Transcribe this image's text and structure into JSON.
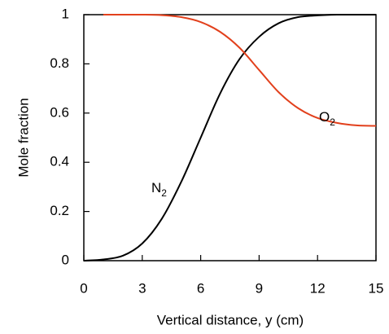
{
  "chart_data": {
    "type": "line",
    "xlabel": "Vertical distance, y (cm)",
    "ylabel": "Mole fraction",
    "x": [
      0,
      1,
      2,
      3,
      4,
      5,
      6,
      7,
      8,
      9,
      10,
      11,
      12,
      13,
      14,
      15
    ],
    "series": [
      {
        "label": {
          "text": "N",
          "subscript": "2"
        },
        "color": "#000000",
        "values": [
          0,
          0.005,
          0.02,
          0.07,
          0.17,
          0.32,
          0.5,
          0.68,
          0.82,
          0.91,
          0.965,
          0.99,
          0.997,
          1,
          1,
          1
        ]
      },
      {
        "label": {
          "text": "O",
          "subscript": "2"
        },
        "color": "#e2401c",
        "values": [
          null,
          1,
          1,
          1,
          0.998,
          0.99,
          0.97,
          0.93,
          0.865,
          0.775,
          0.685,
          0.62,
          0.58,
          0.56,
          0.55,
          0.548
        ]
      }
    ],
    "xlim": [
      0,
      15
    ],
    "xticks": [
      0,
      3,
      6,
      9,
      12,
      15
    ],
    "ylim": [
      0,
      1
    ],
    "yticks": [
      0,
      0.2,
      0.4,
      0.6,
      0.8,
      1
    ],
    "grid": false
  }
}
